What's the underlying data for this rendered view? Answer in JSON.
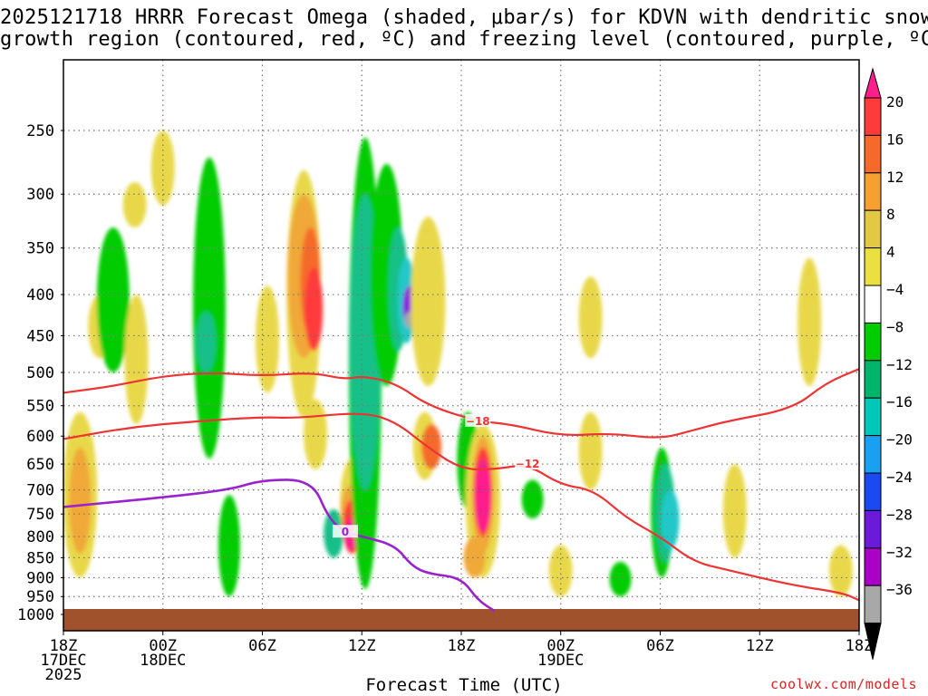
{
  "title_line1": "2025121718 HRRR Forecast Omega (shaded, μbar/s) for KDVN with dendritic snow",
  "title_line2": "growth region (contoured, red, ºC) and freezing level (contoured, purple, ºC)",
  "x_axis_label": "Forecast Time (UTC)",
  "credit": "coolwx.com/models",
  "chart_data": {
    "type": "heatmap",
    "title": "2025121718 HRRR Forecast Omega (shaded, μbar/s) for KDVN with dendritic snow growth region (contoured, red, ºC) and freezing level (contoured, purple, ºC)",
    "xlabel": "Forecast Time (UTC)",
    "ylabel": "",
    "x_range_hours": [
      0,
      48
    ],
    "y_range_hPa": [
      1000,
      200
    ],
    "y_scale": "log-pressure",
    "grid": true,
    "x_ticks": [
      {
        "hour": 0,
        "lines": [
          "18Z",
          "17DEC",
          "2025"
        ]
      },
      {
        "hour": 6,
        "lines": [
          "00Z",
          "18DEC"
        ]
      },
      {
        "hour": 12,
        "lines": [
          "06Z"
        ]
      },
      {
        "hour": 18,
        "lines": [
          "12Z"
        ]
      },
      {
        "hour": 24,
        "lines": [
          "18Z"
        ]
      },
      {
        "hour": 30,
        "lines": [
          "00Z",
          "19DEC"
        ]
      },
      {
        "hour": 36,
        "lines": [
          "06Z"
        ]
      },
      {
        "hour": 42,
        "lines": [
          "12Z"
        ]
      },
      {
        "hour": 48,
        "lines": [
          "18Z"
        ]
      }
    ],
    "y_ticks": [
      250,
      300,
      350,
      400,
      450,
      500,
      550,
      600,
      650,
      700,
      750,
      800,
      850,
      900,
      950,
      1000
    ],
    "colorbar": {
      "labels": [
        "20",
        "16",
        "12",
        "8",
        "4",
        "−4",
        "−8",
        "−12",
        "−16",
        "−20",
        "−24",
        "−28",
        "−32",
        "−36"
      ],
      "colors": [
        "#ff1f8b",
        "#ff3a3a",
        "#f56a2a",
        "#f5a030",
        "#e3c844",
        "#ebe042",
        "#ffffff",
        "#00cc00",
        "#00b56a",
        "#00c8b8",
        "#1aa0f0",
        "#1a4af0",
        "#6a1ad8",
        "#aa00c8",
        "#a8a8a8",
        "#000000"
      ]
    },
    "omega_cells": [
      {
        "t": 1.0,
        "p": [
          560,
          900
        ],
        "v": 4
      },
      {
        "t": 1.0,
        "p": [
          620,
          840
        ],
        "v": 8
      },
      {
        "t": 2.2,
        "p": [
          400,
          480
        ],
        "v": 4
      },
      {
        "t": 3.0,
        "p": [
          330,
          500
        ],
        "v": -8
      },
      {
        "t": 4.3,
        "p": [
          290,
          330
        ],
        "v": 4
      },
      {
        "t": 4.4,
        "p": [
          400,
          580
        ],
        "v": 4
      },
      {
        "t": 6.0,
        "p": [
          250,
          310
        ],
        "v": 4
      },
      {
        "t": 8.8,
        "p": [
          270,
          640
        ],
        "v": -8
      },
      {
        "t": 8.6,
        "p": [
          420,
          500
        ],
        "v": -12
      },
      {
        "t": 10.0,
        "p": [
          710,
          950
        ],
        "v": -8
      },
      {
        "t": 12.3,
        "p": [
          390,
          530
        ],
        "v": 4
      },
      {
        "t": 14.5,
        "p": [
          280,
          570
        ],
        "v": 4
      },
      {
        "t": 14.5,
        "p": [
          300,
          480
        ],
        "v": 8
      },
      {
        "t": 14.9,
        "p": [
          330,
          450
        ],
        "v": 12
      },
      {
        "t": 15.1,
        "p": [
          370,
          470
        ],
        "v": 16
      },
      {
        "t": 15.2,
        "p": [
          540,
          660
        ],
        "v": 4
      },
      {
        "t": 16.3,
        "p": [
          740,
          850
        ],
        "v": -12
      },
      {
        "t": 17.4,
        "p": [
          640,
          820
        ],
        "v": 4
      },
      {
        "t": 17.4,
        "p": [
          690,
          790
        ],
        "v": 8
      },
      {
        "t": 17.4,
        "p": [
          720,
          840
        ],
        "v": 16
      },
      {
        "t": 17.4,
        "p": [
          760,
          830
        ],
        "v": 20
      },
      {
        "t": 18.2,
        "p": [
          255,
          930
        ],
        "v": -8
      },
      {
        "t": 18.2,
        "p": [
          300,
          700
        ],
        "v": -12
      },
      {
        "t": 19.5,
        "p": [
          275,
          520
        ],
        "v": -8
      },
      {
        "t": 20.2,
        "p": [
          330,
          470
        ],
        "v": -12
      },
      {
        "t": 20.7,
        "p": [
          360,
          460
        ],
        "v": -16
      },
      {
        "t": 20.9,
        "p": [
          390,
          440
        ],
        "v": -24
      },
      {
        "t": 20.9,
        "p": [
          420,
          440
        ],
        "v": -32
      },
      {
        "t": 22.0,
        "p": [
          320,
          520
        ],
        "v": 4
      },
      {
        "t": 21.8,
        "p": [
          560,
          680
        ],
        "v": 4
      },
      {
        "t": 22.2,
        "p": [
          580,
          660
        ],
        "v": 12
      },
      {
        "t": 24.4,
        "p": [
          560,
          740
        ],
        "v": -8
      },
      {
        "t": 25.3,
        "p": [
          580,
          900
        ],
        "v": 4
      },
      {
        "t": 25.3,
        "p": [
          600,
          840
        ],
        "v": 8
      },
      {
        "t": 25.3,
        "p": [
          620,
          800
        ],
        "v": 16
      },
      {
        "t": 25.3,
        "p": [
          640,
          790
        ],
        "v": 20
      },
      {
        "t": 24.8,
        "p": [
          800,
          900
        ],
        "v": 8
      },
      {
        "t": 28.3,
        "p": [
          680,
          760
        ],
        "v": -8
      },
      {
        "t": 30.0,
        "p": [
          820,
          950
        ],
        "v": 4
      },
      {
        "t": 31.8,
        "p": [
          560,
          700
        ],
        "v": 4
      },
      {
        "t": 31.8,
        "p": [
          380,
          480
        ],
        "v": 4
      },
      {
        "t": 33.6,
        "p": [
          860,
          950
        ],
        "v": -8
      },
      {
        "t": 36.1,
        "p": [
          620,
          900
        ],
        "v": -8
      },
      {
        "t": 36.3,
        "p": [
          650,
          860
        ],
        "v": -12
      },
      {
        "t": 36.6,
        "p": [
          700,
          830
        ],
        "v": -16
      },
      {
        "t": 40.5,
        "p": [
          650,
          850
        ],
        "v": 4
      },
      {
        "t": 45.0,
        "p": [
          360,
          520
        ],
        "v": 4
      },
      {
        "t": 46.9,
        "p": [
          820,
          950
        ],
        "v": 4
      }
    ],
    "contours": [
      {
        "name": "-18",
        "color": "#ee3333",
        "label": "−18",
        "points": [
          [
            0,
            530
          ],
          [
            3,
            520
          ],
          [
            6,
            505
          ],
          [
            9,
            500
          ],
          [
            12,
            505
          ],
          [
            15,
            500
          ],
          [
            17,
            510
          ],
          [
            18,
            505
          ],
          [
            20,
            515
          ],
          [
            22,
            550
          ],
          [
            25,
            575
          ],
          [
            27,
            580
          ],
          [
            30,
            600
          ],
          [
            33,
            595
          ],
          [
            36,
            605
          ],
          [
            38,
            590
          ],
          [
            40,
            575
          ],
          [
            44,
            555
          ],
          [
            46,
            515
          ],
          [
            48,
            495
          ]
        ]
      },
      {
        "name": "-12",
        "color": "#ee3333",
        "label": "−12",
        "points": [
          [
            0,
            605
          ],
          [
            4,
            585
          ],
          [
            8,
            575
          ],
          [
            12,
            568
          ],
          [
            14,
            570
          ],
          [
            18,
            560
          ],
          [
            20,
            575
          ],
          [
            22,
            620
          ],
          [
            24,
            660
          ],
          [
            26,
            660
          ],
          [
            28,
            650
          ],
          [
            30,
            690
          ],
          [
            32,
            700
          ],
          [
            34,
            760
          ],
          [
            36,
            800
          ],
          [
            38,
            860
          ],
          [
            40,
            880
          ],
          [
            44,
            920
          ],
          [
            47,
            940
          ],
          [
            48,
            960
          ]
        ]
      },
      {
        "name": "0",
        "color": "#9922cc",
        "label": "0",
        "points": [
          [
            0,
            735
          ],
          [
            3,
            725
          ],
          [
            6,
            715
          ],
          [
            10,
            700
          ],
          [
            12,
            680
          ],
          [
            15,
            680
          ],
          [
            16,
            760
          ],
          [
            17,
            790
          ],
          [
            18,
            800
          ],
          [
            20,
            820
          ],
          [
            21,
            870
          ],
          [
            22,
            890
          ],
          [
            24,
            900
          ],
          [
            25,
            960
          ],
          [
            26,
            990
          ]
        ]
      }
    ]
  }
}
